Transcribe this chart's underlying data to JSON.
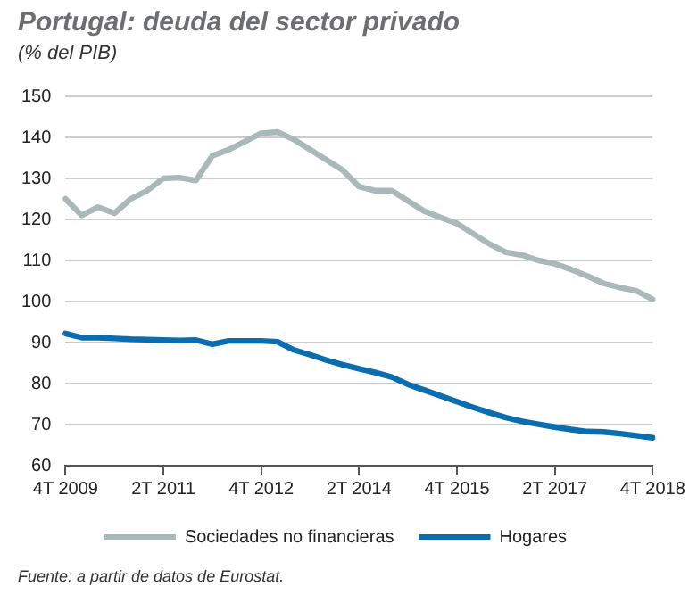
{
  "chart_data": {
    "type": "line",
    "title": "Portugal: deuda del sector privado",
    "subtitle": "(% del PIB)",
    "categories": [
      "4T 2009",
      null,
      null,
      null,
      null,
      null,
      "2T 2011",
      null,
      null,
      null,
      null,
      null,
      "4T 2012",
      null,
      null,
      null,
      null,
      null,
      "2T 2014",
      null,
      null,
      null,
      null,
      null,
      "4T 2015",
      null,
      null,
      null,
      null,
      null,
      "2T 2017",
      null,
      null,
      null,
      null,
      null,
      "4T 2018"
    ],
    "series": [
      {
        "name": "Sociedades no financieras",
        "color": "#a9b8b9",
        "values": [
          125,
          121,
          123,
          121.5,
          125,
          127,
          130,
          130.2,
          129.5,
          135.5,
          137,
          139,
          141,
          141.3,
          139.5,
          137,
          134.5,
          132,
          128,
          127,
          127,
          124.5,
          122,
          120.5,
          119,
          116.5,
          114,
          112,
          111.3,
          110,
          109.2,
          107.8,
          106.2,
          104.4,
          103.4,
          102.6,
          100.5
        ]
      },
      {
        "name": "Hogares",
        "color": "#0a6db0",
        "values": [
          92.2,
          91.2,
          91.2,
          91,
          90.8,
          90.7,
          90.6,
          90.5,
          90.6,
          89.6,
          90.4,
          90.4,
          90.4,
          90.2,
          88.2,
          87,
          85.7,
          84.6,
          83.6,
          82.7,
          81.6,
          79.8,
          78.4,
          77,
          75.6,
          74.2,
          72.9,
          71.7,
          70.8,
          70.1,
          69.4,
          68.8,
          68.3,
          68.2,
          67.8,
          67.3,
          66.8
        ]
      }
    ],
    "ylim": [
      60,
      150
    ],
    "yticks": [
      60,
      70,
      80,
      90,
      100,
      110,
      120,
      130,
      140,
      150
    ],
    "grid": "y",
    "legend": "bottom",
    "marker": "none",
    "line_style": "solid",
    "annotations": [
      "Fuente: a partir de datos de Eurostat."
    ]
  }
}
